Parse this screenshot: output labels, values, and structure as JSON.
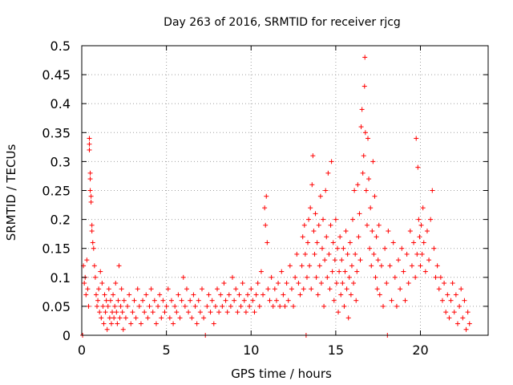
{
  "chart_data": {
    "type": "scatter",
    "title": "Day 263 of 2016, SRMTID for receiver rjcg",
    "xlabel": "GPS time / hours",
    "ylabel": "SRMTID / TECUs",
    "xlim": [
      0,
      24
    ],
    "ylim": [
      0,
      0.5
    ],
    "xticks": [
      0,
      5,
      10,
      15,
      20
    ],
    "yticks": [
      0,
      0.05,
      0.1,
      0.15,
      0.2,
      0.25,
      0.3,
      0.35,
      0.4,
      0.45,
      0.5
    ],
    "xtick_labels": [
      "0",
      "5",
      "10",
      "15",
      "20"
    ],
    "ytick_labels": [
      "0",
      "0.05",
      "0.1",
      "0.15",
      "0.2",
      "0.25",
      "0.3",
      "0.35",
      "0.4",
      "0.45",
      "0.5"
    ],
    "grid": true,
    "marker": "+",
    "color": "#ff0000",
    "series": [
      {
        "name": "SRMTID",
        "points": [
          [
            0.05,
            0.0
          ],
          [
            0.1,
            0.12
          ],
          [
            0.15,
            0.09
          ],
          [
            0.2,
            0.1
          ],
          [
            0.25,
            0.07
          ],
          [
            0.3,
            0.13
          ],
          [
            0.35,
            0.08
          ],
          [
            0.4,
            0.05
          ],
          [
            0.45,
            0.34
          ],
          [
            0.45,
            0.33
          ],
          [
            0.45,
            0.32
          ],
          [
            0.5,
            0.28
          ],
          [
            0.5,
            0.27
          ],
          [
            0.5,
            0.25
          ],
          [
            0.55,
            0.24
          ],
          [
            0.55,
            0.23
          ],
          [
            0.6,
            0.19
          ],
          [
            0.6,
            0.18
          ],
          [
            0.65,
            0.16
          ],
          [
            0.7,
            0.15
          ],
          [
            0.75,
            0.12
          ],
          [
            0.8,
            0.1
          ],
          [
            0.85,
            0.07
          ],
          [
            0.9,
            0.05
          ],
          [
            0.95,
            0.06
          ],
          [
            1.0,
            0.08
          ],
          [
            1.05,
            0.04
          ],
          [
            1.1,
            0.11
          ],
          [
            1.15,
            0.03
          ],
          [
            1.2,
            0.09
          ],
          [
            1.25,
            0.05
          ],
          [
            1.3,
            0.02
          ],
          [
            1.35,
            0.07
          ],
          [
            1.4,
            0.04
          ],
          [
            1.45,
            0.06
          ],
          [
            1.5,
            0.01
          ],
          [
            1.55,
            0.05
          ],
          [
            1.6,
            0.08
          ],
          [
            1.65,
            0.03
          ],
          [
            1.7,
            0.06
          ],
          [
            1.75,
            0.02
          ],
          [
            1.8,
            0.04
          ],
          [
            1.85,
            0.07
          ],
          [
            1.9,
            0.03
          ],
          [
            1.95,
            0.05
          ],
          [
            2.0,
            0.09
          ],
          [
            2.05,
            0.04
          ],
          [
            2.1,
            0.02
          ],
          [
            2.15,
            0.06
          ],
          [
            2.2,
            0.12
          ],
          [
            2.25,
            0.03
          ],
          [
            2.3,
            0.05
          ],
          [
            2.35,
            0.08
          ],
          [
            2.4,
            0.04
          ],
          [
            2.45,
            0.01
          ],
          [
            2.5,
            0.06
          ],
          [
            2.6,
            0.03
          ],
          [
            2.7,
            0.05
          ],
          [
            2.8,
            0.07
          ],
          [
            2.9,
            0.02
          ],
          [
            3.0,
            0.04
          ],
          [
            3.1,
            0.06
          ],
          [
            3.2,
            0.03
          ],
          [
            3.3,
            0.08
          ],
          [
            3.4,
            0.05
          ],
          [
            3.5,
            0.02
          ],
          [
            3.6,
            0.06
          ],
          [
            3.7,
            0.04
          ],
          [
            3.8,
            0.07
          ],
          [
            3.9,
            0.03
          ],
          [
            4.0,
            0.05
          ],
          [
            4.1,
            0.08
          ],
          [
            4.2,
            0.04
          ],
          [
            4.3,
            0.06
          ],
          [
            4.4,
            0.02
          ],
          [
            4.5,
            0.05
          ],
          [
            4.6,
            0.07
          ],
          [
            4.7,
            0.03
          ],
          [
            4.8,
            0.06
          ],
          [
            4.9,
            0.04
          ],
          [
            5.0,
            0.05
          ],
          [
            5.1,
            0.08
          ],
          [
            5.2,
            0.03
          ],
          [
            5.3,
            0.06
          ],
          [
            5.4,
            0.02
          ],
          [
            5.5,
            0.05
          ],
          [
            5.6,
            0.04
          ],
          [
            5.7,
            0.07
          ],
          [
            5.8,
            0.03
          ],
          [
            5.9,
            0.06
          ],
          [
            6.0,
            0.1
          ],
          [
            6.1,
            0.05
          ],
          [
            6.2,
            0.08
          ],
          [
            6.3,
            0.04
          ],
          [
            6.4,
            0.06
          ],
          [
            6.5,
            0.03
          ],
          [
            6.6,
            0.07
          ],
          [
            6.7,
            0.05
          ],
          [
            6.8,
            0.02
          ],
          [
            6.9,
            0.06
          ],
          [
            7.0,
            0.04
          ],
          [
            7.1,
            0.08
          ],
          [
            7.2,
            0.03
          ],
          [
            7.3,
            0.0
          ],
          [
            7.4,
            0.05
          ],
          [
            7.5,
            0.07
          ],
          [
            7.6,
            0.04
          ],
          [
            7.7,
            0.06
          ],
          [
            7.8,
            0.02
          ],
          [
            7.9,
            0.05
          ],
          [
            8.0,
            0.08
          ],
          [
            8.1,
            0.04
          ],
          [
            8.2,
            0.07
          ],
          [
            8.3,
            0.05
          ],
          [
            8.4,
            0.09
          ],
          [
            8.5,
            0.06
          ],
          [
            8.6,
            0.04
          ],
          [
            8.7,
            0.07
          ],
          [
            8.8,
            0.05
          ],
          [
            8.9,
            0.1
          ],
          [
            9.0,
            0.06
          ],
          [
            9.1,
            0.08
          ],
          [
            9.2,
            0.04
          ],
          [
            9.3,
            0.07
          ],
          [
            9.4,
            0.05
          ],
          [
            9.5,
            0.09
          ],
          [
            9.6,
            0.06
          ],
          [
            9.7,
            0.04
          ],
          [
            9.8,
            0.07
          ],
          [
            9.9,
            0.05
          ],
          [
            10.0,
            0.08
          ],
          [
            10.1,
            0.06
          ],
          [
            10.2,
            0.04
          ],
          [
            10.3,
            0.07
          ],
          [
            10.4,
            0.09
          ],
          [
            10.5,
            0.05
          ],
          [
            10.6,
            0.11
          ],
          [
            10.7,
            0.07
          ],
          [
            10.8,
            0.22
          ],
          [
            10.85,
            0.19
          ],
          [
            10.9,
            0.24
          ],
          [
            10.95,
            0.16
          ],
          [
            11.0,
            0.08
          ],
          [
            11.1,
            0.06
          ],
          [
            11.2,
            0.1
          ],
          [
            11.3,
            0.05
          ],
          [
            11.4,
            0.08
          ],
          [
            11.5,
            0.06
          ],
          [
            11.6,
            0.09
          ],
          [
            11.7,
            0.05
          ],
          [
            11.8,
            0.11
          ],
          [
            11.9,
            0.07
          ],
          [
            12.0,
            0.05
          ],
          [
            12.1,
            0.09
          ],
          [
            12.2,
            0.06
          ],
          [
            12.3,
            0.12
          ],
          [
            12.4,
            0.08
          ],
          [
            12.5,
            0.05
          ],
          [
            12.6,
            0.1
          ],
          [
            12.7,
            0.14
          ],
          [
            12.8,
            0.09
          ],
          [
            12.9,
            0.07
          ],
          [
            13.0,
            0.12
          ],
          [
            13.05,
            0.17
          ],
          [
            13.1,
            0.08
          ],
          [
            13.15,
            0.19
          ],
          [
            13.2,
            0.14
          ],
          [
            13.25,
            0.0
          ],
          [
            13.3,
            0.1
          ],
          [
            13.35,
            0.16
          ],
          [
            13.4,
            0.2
          ],
          [
            13.45,
            0.12
          ],
          [
            13.5,
            0.22
          ],
          [
            13.55,
            0.08
          ],
          [
            13.6,
            0.26
          ],
          [
            13.65,
            0.31
          ],
          [
            13.7,
            0.18
          ],
          [
            13.75,
            0.14
          ],
          [
            13.8,
            0.21
          ],
          [
            13.85,
            0.1
          ],
          [
            13.9,
            0.16
          ],
          [
            13.95,
            0.07
          ],
          [
            14.0,
            0.19
          ],
          [
            14.05,
            0.12
          ],
          [
            14.1,
            0.24
          ],
          [
            14.15,
            0.09
          ],
          [
            14.2,
            0.15
          ],
          [
            14.25,
            0.2
          ],
          [
            14.3,
            0.05
          ],
          [
            14.35,
            0.13
          ],
          [
            14.4,
            0.25
          ],
          [
            14.45,
            0.17
          ],
          [
            14.5,
            0.1
          ],
          [
            14.55,
            0.28
          ],
          [
            14.6,
            0.14
          ],
          [
            14.65,
            0.08
          ],
          [
            14.7,
            0.19
          ],
          [
            14.75,
            0.3
          ],
          [
            14.8,
            0.11
          ],
          [
            14.85,
            0.16
          ],
          [
            14.9,
            0.06
          ],
          [
            14.95,
            0.13
          ],
          [
            15.0,
            0.2
          ],
          [
            15.05,
            0.09
          ],
          [
            15.1,
            0.15
          ],
          [
            15.15,
            0.04
          ],
          [
            15.2,
            0.11
          ],
          [
            15.25,
            0.17
          ],
          [
            15.3,
            0.07
          ],
          [
            15.35,
            0.13
          ],
          [
            15.4,
            0.09
          ],
          [
            15.45,
            0.15
          ],
          [
            15.5,
            0.05
          ],
          [
            15.55,
            0.11
          ],
          [
            15.6,
            0.18
          ],
          [
            15.65,
            0.08
          ],
          [
            15.7,
            0.14
          ],
          [
            15.75,
            0.03
          ],
          [
            15.8,
            0.1
          ],
          [
            15.85,
            0.16
          ],
          [
            15.9,
            0.07
          ],
          [
            15.95,
            0.12
          ],
          [
            16.0,
            0.2
          ],
          [
            16.05,
            0.09
          ],
          [
            16.1,
            0.25
          ],
          [
            16.15,
            0.14
          ],
          [
            16.2,
            0.06
          ],
          [
            16.25,
            0.11
          ],
          [
            16.3,
            0.26
          ],
          [
            16.35,
            0.17
          ],
          [
            16.4,
            0.21
          ],
          [
            16.45,
            0.13
          ],
          [
            16.5,
            0.36
          ],
          [
            16.55,
            0.39
          ],
          [
            16.6,
            0.28
          ],
          [
            16.65,
            0.31
          ],
          [
            16.7,
            0.43
          ],
          [
            16.72,
            0.48
          ],
          [
            16.75,
            0.35
          ],
          [
            16.8,
            0.25
          ],
          [
            16.85,
            0.19
          ],
          [
            16.9,
            0.34
          ],
          [
            16.95,
            0.27
          ],
          [
            17.0,
            0.15
          ],
          [
            17.05,
            0.22
          ],
          [
            17.1,
            0.12
          ],
          [
            17.15,
            0.18
          ],
          [
            17.2,
            0.3
          ],
          [
            17.25,
            0.14
          ],
          [
            17.3,
            0.24
          ],
          [
            17.35,
            0.1
          ],
          [
            17.4,
            0.17
          ],
          [
            17.45,
            0.08
          ],
          [
            17.5,
            0.13
          ],
          [
            17.55,
            0.19
          ],
          [
            17.6,
            0.07
          ],
          [
            17.7,
            0.12
          ],
          [
            17.8,
            0.05
          ],
          [
            17.9,
            0.15
          ],
          [
            18.0,
            0.09
          ],
          [
            18.05,
            0.0
          ],
          [
            18.1,
            0.18
          ],
          [
            18.2,
            0.12
          ],
          [
            18.3,
            0.06
          ],
          [
            18.4,
            0.16
          ],
          [
            18.5,
            0.1
          ],
          [
            18.6,
            0.05
          ],
          [
            18.7,
            0.13
          ],
          [
            18.8,
            0.08
          ],
          [
            18.9,
            0.15
          ],
          [
            19.0,
            0.11
          ],
          [
            19.1,
            0.06
          ],
          [
            19.2,
            0.14
          ],
          [
            19.3,
            0.09
          ],
          [
            19.4,
            0.18
          ],
          [
            19.5,
            0.12
          ],
          [
            19.6,
            0.16
          ],
          [
            19.7,
            0.1
          ],
          [
            19.75,
            0.34
          ],
          [
            19.8,
            0.14
          ],
          [
            19.85,
            0.29
          ],
          [
            19.9,
            0.2
          ],
          [
            19.95,
            0.17
          ],
          [
            20.0,
            0.12
          ],
          [
            20.05,
            0.19
          ],
          [
            20.1,
            0.14
          ],
          [
            20.15,
            0.22
          ],
          [
            20.2,
            0.16
          ],
          [
            20.3,
            0.11
          ],
          [
            20.4,
            0.18
          ],
          [
            20.5,
            0.13
          ],
          [
            20.6,
            0.2
          ],
          [
            20.7,
            0.25
          ],
          [
            20.8,
            0.15
          ],
          [
            20.9,
            0.1
          ],
          [
            21.0,
            0.12
          ],
          [
            21.1,
            0.08
          ],
          [
            21.2,
            0.1
          ],
          [
            21.3,
            0.06
          ],
          [
            21.4,
            0.09
          ],
          [
            21.5,
            0.04
          ],
          [
            21.6,
            0.07
          ],
          [
            21.7,
            0.03
          ],
          [
            21.8,
            0.06
          ],
          [
            21.9,
            0.09
          ],
          [
            22.0,
            0.04
          ],
          [
            22.1,
            0.07
          ],
          [
            22.2,
            0.02
          ],
          [
            22.3,
            0.05
          ],
          [
            22.4,
            0.08
          ],
          [
            22.5,
            0.03
          ],
          [
            22.6,
            0.06
          ],
          [
            22.7,
            0.01
          ],
          [
            22.8,
            0.04
          ],
          [
            22.9,
            0.02
          ]
        ]
      }
    ]
  }
}
